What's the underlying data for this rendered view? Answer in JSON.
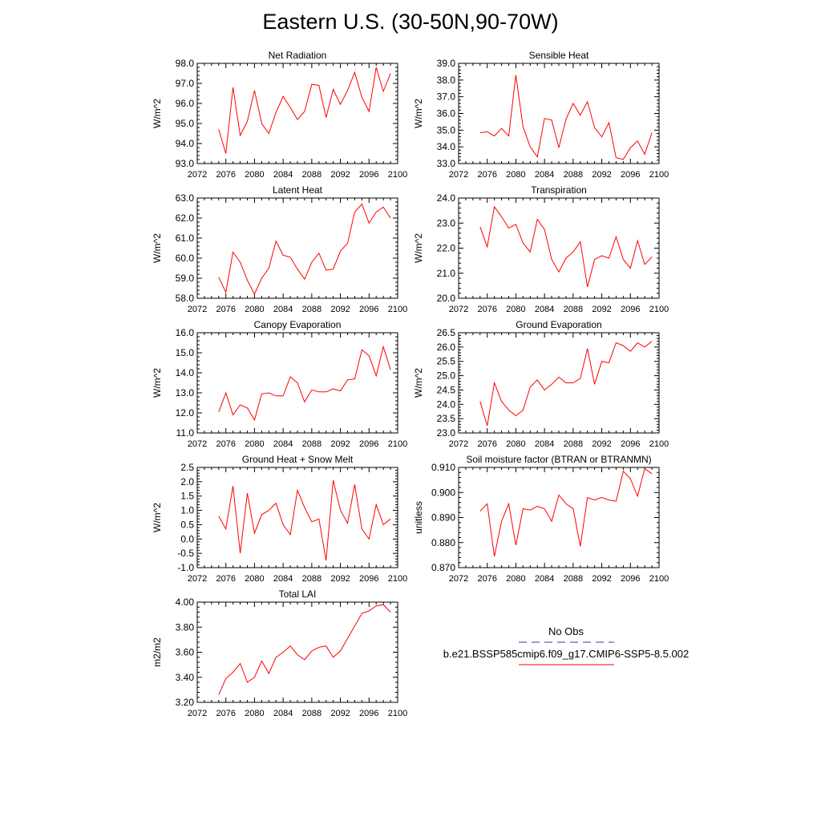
{
  "title": "Eastern U.S. (30-50N,90-70W)",
  "x_ticks": [
    2072,
    2076,
    2080,
    2084,
    2088,
    2092,
    2096,
    2100
  ],
  "xlim": [
    2072,
    2100
  ],
  "years": [
    2075,
    2076,
    2077,
    2078,
    2079,
    2080,
    2081,
    2082,
    2083,
    2084,
    2085,
    2086,
    2087,
    2088,
    2089,
    2090,
    2091,
    2092,
    2093,
    2094,
    2095,
    2096,
    2097,
    2098,
    2099
  ],
  "line_color": "#ff0000",
  "chart_data": [
    {
      "type": "line",
      "title": "Net Radiation",
      "ylabel": "W/m^2",
      "ylim": [
        93,
        98
      ],
      "yticks": [
        "93.0",
        "94.0",
        "95.0",
        "96.0",
        "97.0",
        "98.0"
      ],
      "values": [
        94.7,
        93.5,
        96.8,
        94.4,
        95.1,
        96.65,
        95.0,
        94.5,
        95.55,
        96.35,
        95.8,
        95.2,
        95.6,
        96.95,
        96.9,
        95.3,
        96.7,
        95.95,
        96.65,
        97.55,
        96.3,
        95.6,
        97.8,
        96.6,
        97.5
      ]
    },
    {
      "type": "line",
      "title": "Sensible Heat",
      "ylabel": "W/m^2",
      "ylim": [
        33,
        39
      ],
      "yticks": [
        "33.0",
        "34.0",
        "35.0",
        "36.0",
        "37.0",
        "38.0",
        "39.0"
      ],
      "values": [
        34.85,
        34.9,
        34.65,
        35.1,
        34.65,
        38.3,
        35.2,
        34.0,
        33.4,
        35.7,
        35.6,
        33.95,
        35.65,
        36.6,
        35.9,
        36.7,
        35.15,
        34.6,
        35.45,
        33.35,
        33.25,
        33.95,
        34.35,
        33.55,
        34.85
      ]
    },
    {
      "type": "line",
      "title": "Latent Heat",
      "ylabel": "W/m^2",
      "ylim": [
        58,
        63
      ],
      "yticks": [
        "58.0",
        "59.0",
        "60.0",
        "61.0",
        "62.0",
        "63.0"
      ],
      "values": [
        59.05,
        58.3,
        60.3,
        59.8,
        58.9,
        58.2,
        59.0,
        59.5,
        60.85,
        60.15,
        60.05,
        59.45,
        58.95,
        59.8,
        60.25,
        59.4,
        59.45,
        60.35,
        60.75,
        62.3,
        62.7,
        61.75,
        62.3,
        62.55,
        62.0
      ]
    },
    {
      "type": "line",
      "title": "Transpiration",
      "ylabel": "W/m^2",
      "ylim": [
        20,
        24
      ],
      "yticks": [
        "20.0",
        "21.0",
        "22.0",
        "23.0",
        "24.0"
      ],
      "values": [
        22.85,
        22.05,
        23.65,
        23.25,
        22.8,
        22.95,
        22.2,
        21.85,
        23.15,
        22.75,
        21.55,
        21.05,
        21.6,
        21.85,
        22.25,
        20.45,
        21.55,
        21.7,
        21.6,
        22.45,
        21.55,
        21.2,
        22.3,
        21.35,
        21.65
      ]
    },
    {
      "type": "line",
      "title": "Canopy Evaporation",
      "ylabel": "W/m^2",
      "ylim": [
        11,
        16
      ],
      "yticks": [
        "11.0",
        "12.0",
        "13.0",
        "14.0",
        "15.0",
        "16.0"
      ],
      "values": [
        12.05,
        13.0,
        11.9,
        12.4,
        12.25,
        11.65,
        12.95,
        13.0,
        12.85,
        12.85,
        13.8,
        13.5,
        12.55,
        13.15,
        13.05,
        13.05,
        13.2,
        13.1,
        13.65,
        13.7,
        15.15,
        14.85,
        13.85,
        15.3,
        14.15
      ]
    },
    {
      "type": "line",
      "title": "Ground Evaporation",
      "ylabel": "W/m^2",
      "ylim": [
        23,
        26.5
      ],
      "yticks": [
        "23.0",
        "23.5",
        "24.0",
        "24.5",
        "25.0",
        "25.5",
        "26.0",
        "26.5"
      ],
      "values": [
        24.1,
        23.25,
        24.75,
        24.1,
        23.8,
        23.6,
        23.8,
        24.6,
        24.85,
        24.5,
        24.7,
        24.95,
        24.75,
        24.75,
        24.9,
        25.95,
        24.7,
        25.5,
        25.45,
        26.15,
        26.05,
        25.85,
        26.15,
        26.0,
        26.2
      ]
    },
    {
      "type": "line",
      "title": "Ground Heat + Snow Melt",
      "ylabel": "W/m^2",
      "ylim": [
        -1,
        2.5
      ],
      "yticks": [
        "-1.0",
        "-0.5",
        "0.0",
        "0.5",
        "1.0",
        "1.5",
        "2.0",
        "2.5"
      ],
      "values": [
        0.8,
        0.35,
        1.85,
        -0.5,
        1.6,
        0.2,
        0.85,
        1.0,
        1.25,
        0.5,
        0.15,
        1.7,
        1.1,
        0.6,
        0.7,
        -0.75,
        2.05,
        1.0,
        0.55,
        1.9,
        0.35,
        0.0,
        1.2,
        0.5,
        0.7
      ]
    },
    {
      "type": "line",
      "title": "Soil moisture factor (BTRAN or BTRANMN)",
      "ylabel": "unitless",
      "ylim": [
        0.87,
        0.91
      ],
      "yticks": [
        "0.870",
        "0.880",
        "0.890",
        "0.900",
        "0.910"
      ],
      "values": [
        0.8925,
        0.8955,
        0.8745,
        0.8885,
        0.8955,
        0.879,
        0.8935,
        0.893,
        0.8945,
        0.8935,
        0.8885,
        0.899,
        0.8955,
        0.8935,
        0.8785,
        0.898,
        0.897,
        0.898,
        0.897,
        0.8965,
        0.9085,
        0.9055,
        0.8985,
        0.9095,
        0.9075
      ]
    },
    {
      "type": "line",
      "title": "Total LAI",
      "ylabel": "m2/m2",
      "ylim": [
        3.2,
        4.0
      ],
      "yticks": [
        "3.20",
        "3.40",
        "3.60",
        "3.80",
        "4.00"
      ],
      "values": [
        3.26,
        3.39,
        3.44,
        3.51,
        3.36,
        3.4,
        3.53,
        3.43,
        3.56,
        3.6,
        3.65,
        3.58,
        3.54,
        3.61,
        3.64,
        3.65,
        3.56,
        3.61,
        3.71,
        3.81,
        3.91,
        3.93,
        3.97,
        3.98,
        3.92
      ]
    }
  ],
  "legend": {
    "obs_label": "No Obs",
    "obs_color": "#3a3aa0",
    "case_label": "b.e21.BSSP585cmip6.f09_g17.CMIP6-SSP5-8.5.002",
    "case_color": "#ff0000"
  }
}
